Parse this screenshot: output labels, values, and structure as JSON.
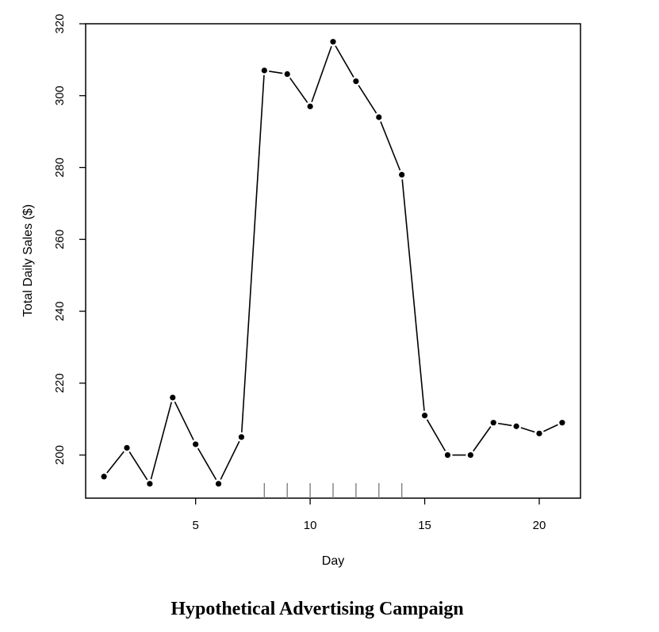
{
  "caption": "Hypothetical Advertising Campaign",
  "chart_data": {
    "type": "line",
    "xlabel": "Day",
    "ylabel": "Total Daily Sales ($)",
    "xlim": [
      0.2,
      21.8
    ],
    "ylim": [
      188,
      320
    ],
    "x_ticks": [
      5,
      10,
      15,
      20
    ],
    "y_ticks": [
      200,
      220,
      240,
      260,
      280,
      300,
      320
    ],
    "grid": false,
    "series": [
      {
        "x": [
          1,
          2,
          3,
          4,
          5,
          6,
          7,
          8,
          9,
          10,
          11,
          12,
          13,
          14,
          15,
          16,
          17,
          18,
          19,
          20,
          21
        ],
        "values": [
          194,
          202,
          192,
          216,
          203,
          192,
          205,
          307,
          306,
          297,
          315,
          304,
          294,
          278,
          211,
          200,
          200,
          209,
          208,
          206,
          209
        ]
      }
    ],
    "rug_x": [
      8,
      9,
      10,
      11,
      12,
      13,
      14
    ],
    "colors": {
      "line": "#000000",
      "rug": "#808080"
    }
  }
}
